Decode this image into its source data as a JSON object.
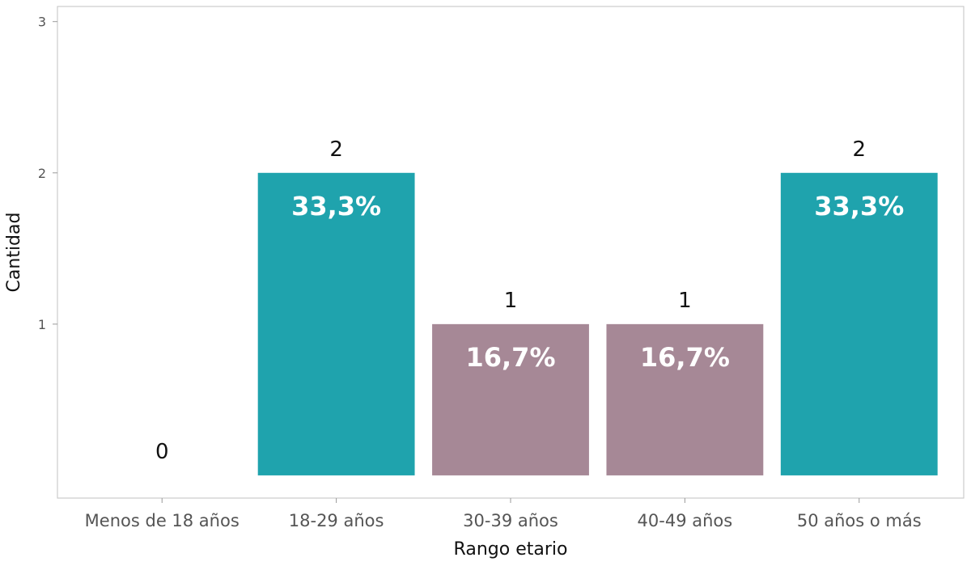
{
  "chart_data": {
    "type": "bar",
    "xlabel": "Rango etario",
    "ylabel": "Cantidad",
    "categories": [
      "Menos de 18 años",
      "18-29 años",
      "30-39 años",
      "40-49 años",
      "50 años o más"
    ],
    "values": [
      0,
      2,
      1,
      1,
      2
    ],
    "count_labels": [
      "0",
      "2",
      "1",
      "1",
      "2"
    ],
    "percent_labels": [
      "",
      "33,3%",
      "16,7%",
      "16,7%",
      "33,3%"
    ],
    "bar_colors": [
      "#1fa3ad",
      "#1fa3ad",
      "#a68896",
      "#a68896",
      "#1fa3ad"
    ],
    "ylim": [
      -0.15,
      3.1
    ],
    "yticks": [
      1,
      2,
      3
    ],
    "ytick_labels": [
      "1",
      "2",
      "3"
    ],
    "grid": false,
    "legend": "none"
  }
}
